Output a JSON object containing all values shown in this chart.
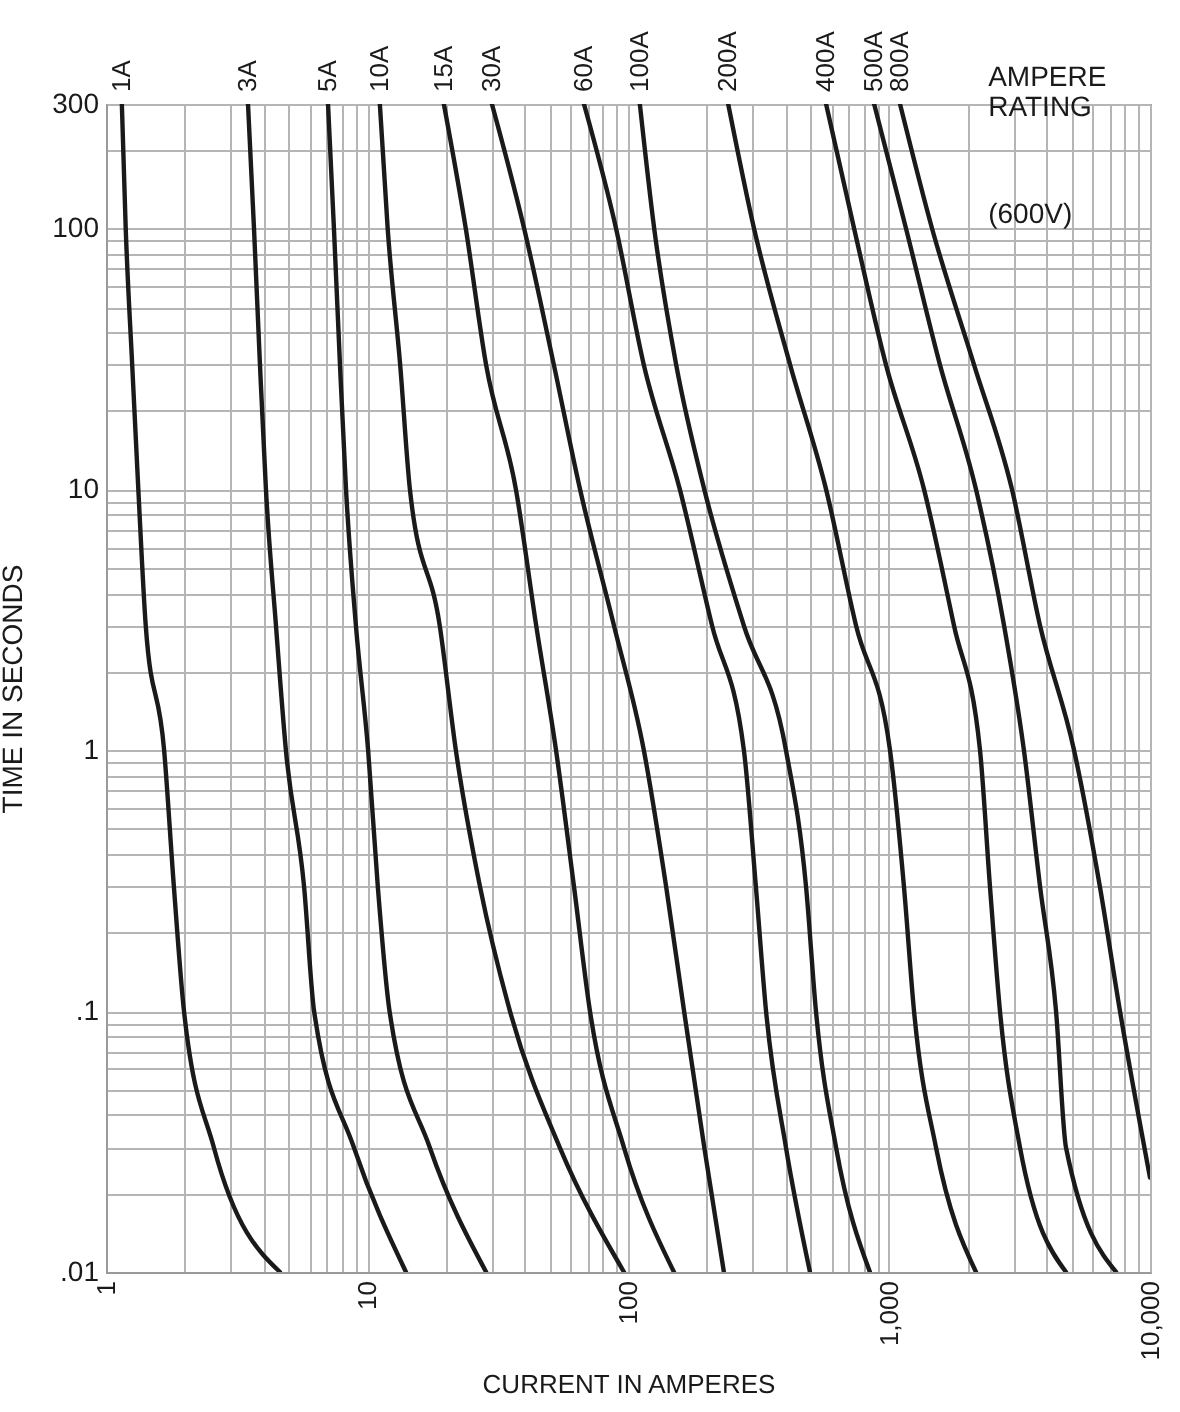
{
  "chart_data": {
    "type": "line",
    "xlabel": "CURRENT IN AMPERES",
    "ylabel": "TIME IN SECONDS",
    "legend_title": "AMPERE RATING",
    "annotations": [
      "(600V)"
    ],
    "log": "xy",
    "grid": true,
    "legend": false,
    "marker": "none",
    "line_style": "solid",
    "xlim": [
      1,
      10000
    ],
    "ylim": [
      0.01,
      300
    ],
    "xticks": [
      1,
      {
        "value": 2,
        "label": null
      },
      {
        "value": 3,
        "label": null
      },
      {
        "value": 4,
        "label": null
      },
      {
        "value": 5,
        "label": null
      },
      {
        "value": 6,
        "label": null
      },
      {
        "value": 7,
        "label": null
      },
      {
        "value": 8,
        "label": null
      },
      {
        "value": 9,
        "label": null
      },
      10,
      {
        "value": 20,
        "label": null
      },
      {
        "value": 30,
        "label": null
      },
      {
        "value": 40,
        "label": null
      },
      {
        "value": 50,
        "label": null
      },
      {
        "value": 60,
        "label": null
      },
      {
        "value": 70,
        "label": null
      },
      {
        "value": 80,
        "label": null
      },
      {
        "value": 90,
        "label": null
      },
      100,
      {
        "value": 200,
        "label": null
      },
      {
        "value": 300,
        "label": null
      },
      {
        "value": 400,
        "label": null
      },
      {
        "value": 500,
        "label": null
      },
      {
        "value": 600,
        "label": null
      },
      {
        "value": 700,
        "label": null
      },
      {
        "value": 800,
        "label": null
      },
      {
        "value": 900,
        "label": null
      },
      {
        "value": 1000,
        "label": "1,000"
      },
      {
        "value": 2000,
        "label": null
      },
      {
        "value": 3000,
        "label": null
      },
      {
        "value": 4000,
        "label": null
      },
      {
        "value": 5000,
        "label": null
      },
      {
        "value": 6000,
        "label": null
      },
      {
        "value": 7000,
        "label": null
      },
      {
        "value": 8000,
        "label": null
      },
      {
        "value": 9000,
        "label": null
      },
      {
        "value": 10000,
        "label": "10,000"
      }
    ],
    "yticks": [
      {
        "value": 0.01,
        "label": ".01"
      },
      {
        "value": 0.02,
        "label": null
      },
      {
        "value": 0.03,
        "label": null
      },
      {
        "value": 0.04,
        "label": null
      },
      {
        "value": 0.05,
        "label": null
      },
      {
        "value": 0.06,
        "label": null
      },
      {
        "value": 0.07,
        "label": null
      },
      {
        "value": 0.08,
        "label": null
      },
      {
        "value": 0.09,
        "label": null
      },
      {
        "value": 0.1,
        "label": ".1"
      },
      {
        "value": 0.2,
        "label": null
      },
      {
        "value": 0.3,
        "label": null
      },
      {
        "value": 0.4,
        "label": null
      },
      {
        "value": 0.5,
        "label": null
      },
      {
        "value": 0.6,
        "label": null
      },
      {
        "value": 0.7,
        "label": null
      },
      {
        "value": 0.8,
        "label": null
      },
      {
        "value": 0.9,
        "label": null
      },
      1,
      {
        "value": 2,
        "label": null
      },
      {
        "value": 3,
        "label": null
      },
      {
        "value": 4,
        "label": null
      },
      {
        "value": 5,
        "label": null
      },
      {
        "value": 6,
        "label": null
      },
      {
        "value": 7,
        "label": null
      },
      {
        "value": 8,
        "label": null
      },
      {
        "value": 9,
        "label": null
      },
      10,
      {
        "value": 20,
        "label": null
      },
      {
        "value": 30,
        "label": null
      },
      {
        "value": 40,
        "label": null
      },
      {
        "value": 50,
        "label": null
      },
      {
        "value": 60,
        "label": null
      },
      {
        "value": 70,
        "label": null
      },
      {
        "value": 80,
        "label": null
      },
      {
        "value": 90,
        "label": null
      },
      100,
      {
        "value": 200,
        "label": null
      },
      300
    ],
    "series": [
      {
        "name": "1A",
        "color": "#1a1a1a",
        "x": [
          1.15,
          1.19,
          1.26,
          1.33,
          1.42,
          1.67,
          1.82,
          1.99,
          2.59,
          4.64
        ],
        "values": [
          300,
          100,
          30,
          10,
          3,
          1,
          0.3,
          0.1,
          0.03,
          0.01
        ]
      },
      {
        "name": "3A",
        "color": "#1a1a1a",
        "x": [
          3.5,
          3.69,
          3.89,
          4.1,
          4.48,
          4.89,
          5.74,
          6.27,
          8.91,
          14.1
        ],
        "values": [
          300,
          100,
          30,
          10,
          3,
          1,
          0.3,
          0.1,
          0.03,
          0.01
        ]
      },
      {
        "name": "5A",
        "color": "#1a1a1a",
        "x": [
          7.09,
          7.47,
          7.88,
          8.31,
          9.07,
          10.1,
          11.0,
          12.2,
          17.4,
          28.6
        ],
        "values": [
          300,
          100,
          30,
          10,
          3,
          1,
          0.3,
          0.1,
          0.03,
          0.01
        ]
      },
      {
        "name": "10A",
        "color": "#1a1a1a",
        "x": [
          11.2,
          12.0,
          13.4,
          14.6,
          19.0,
          21.9,
          27.1,
          35.3,
          54.8,
          96.5
        ],
        "values": [
          300,
          100,
          30,
          10,
          3,
          1,
          0.3,
          0.1,
          0.03,
          0.01
        ]
      },
      {
        "name": "15A",
        "color": "#1a1a1a",
        "x": [
          19.7,
          23.9,
          28.6,
          37.2,
          44.5,
          53.0,
          62.1,
          71.5,
          96.5,
          150
        ],
        "values": [
          300,
          100,
          30,
          10,
          3,
          1,
          0.3,
          0.1,
          0.03,
          0.01
        ]
      },
      {
        "name": "30A",
        "color": "#1a1a1a",
        "x": [
          30.1,
          40.0,
          52.0,
          65.5,
          88.4,
          115,
          140,
          164,
          196,
          233
        ],
        "values": [
          300,
          100,
          30,
          10,
          3,
          1,
          0.3,
          0.1,
          0.03,
          0.01
        ]
      },
      {
        "name": "60A",
        "color": "#1a1a1a",
        "x": [
          67.8,
          90.0,
          115,
          158,
          210,
          278,
          309,
          338,
          403,
          498
        ],
        "values": [
          300,
          100,
          30,
          10,
          3,
          1,
          0.3,
          0.1,
          0.03,
          0.01
        ]
      },
      {
        "name": "100A",
        "color": "#1a1a1a",
        "x": [
          111,
          126,
          153,
          196,
          278,
          403,
          481,
          525,
          627,
          845
        ],
        "values": [
          300,
          100,
          30,
          10,
          3,
          1,
          0.3,
          0.1,
          0.03,
          0.01
        ]
      },
      {
        "name": "200A",
        "color": "#1a1a1a",
        "x": [
          242,
          304,
          418,
          574,
          748,
          1009,
          1141,
          1247,
          1514,
          2154
        ],
        "values": [
          300,
          100,
          30,
          10,
          3,
          1,
          0.3,
          0.1,
          0.03,
          0.01
        ]
      },
      {
        "name": "400A",
        "color": "#1a1a1a",
        "x": [
          574,
          735,
          974,
          1362,
          1775,
          2232,
          2437,
          2662,
          3177,
          4766
        ],
        "values": [
          300,
          100,
          30,
          10,
          3,
          1,
          0.3,
          0.1,
          0.03,
          0.01
        ]
      },
      {
        "name": "500A",
        "color": "#1a1a1a",
        "x": [
          877,
          1162,
          1568,
          2154,
          2761,
          3288,
          3792,
          4365,
          4766,
          7413
        ],
        "values": [
          300,
          100,
          30,
          10,
          3,
          1,
          0.3,
          0.1,
          0.03,
          0.01
        ]
      },
      {
        "name": "800A",
        "color": "#1a1a1a",
        "x": [
          1102,
          1462,
          2118,
          2959,
          3792,
          5117,
          6427,
          7674,
          10000
        ],
        "values": [
          300,
          100,
          30,
          10,
          3,
          1,
          0.3,
          0.1,
          0.023
        ]
      }
    ]
  }
}
